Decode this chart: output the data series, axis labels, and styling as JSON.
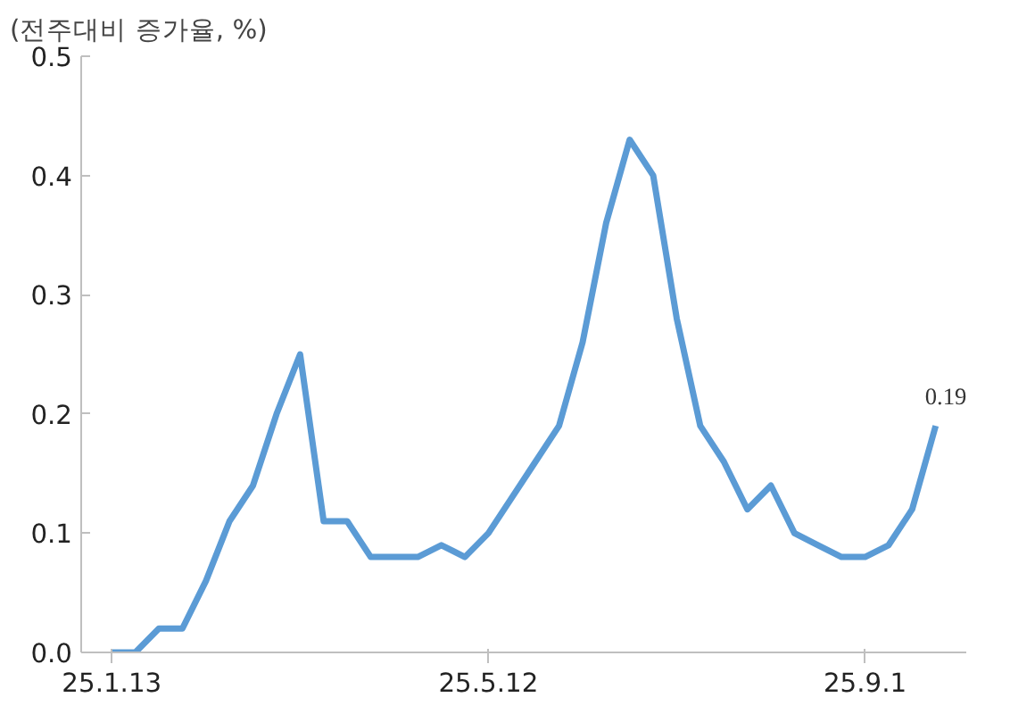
{
  "chart_data": {
    "type": "line",
    "ylabel": "(전주대비 증가율, %)",
    "categories": [
      "25.1.13",
      null,
      null,
      null,
      null,
      null,
      null,
      null,
      null,
      null,
      null,
      null,
      null,
      null,
      null,
      null,
      "25.5.12",
      null,
      null,
      null,
      null,
      null,
      null,
      null,
      null,
      null,
      null,
      null,
      null,
      null,
      null,
      null,
      "25.9.1",
      null,
      null,
      null
    ],
    "series": [
      {
        "color": "#5b9bd5",
        "values": [
          0.0,
          0.0,
          0.02,
          0.02,
          0.06,
          0.11,
          0.14,
          0.2,
          0.25,
          0.11,
          0.11,
          0.08,
          0.08,
          0.08,
          0.09,
          0.08,
          0.1,
          0.13,
          0.16,
          0.19,
          0.26,
          0.36,
          0.43,
          0.4,
          0.28,
          0.19,
          0.16,
          0.12,
          0.14,
          0.1,
          0.09,
          0.08,
          0.08,
          0.09,
          0.12,
          0.19
        ],
        "value_labels": [
          null,
          null,
          null,
          null,
          null,
          null,
          null,
          null,
          null,
          null,
          null,
          null,
          null,
          null,
          null,
          null,
          null,
          null,
          null,
          null,
          null,
          null,
          null,
          null,
          null,
          null,
          null,
          null,
          null,
          null,
          null,
          null,
          null,
          null,
          null,
          "0.19"
        ]
      }
    ],
    "ylim": [
      0,
      0.5
    ],
    "yticks": [
      {
        "value": 0,
        "label": "0.0"
      },
      {
        "value": 0.1,
        "label": "0.1"
      },
      {
        "value": 0.2,
        "label": "0.2"
      },
      {
        "value": 0.3,
        "label": "0.3"
      },
      {
        "value": 0.4,
        "label": "0.4"
      },
      {
        "value": 0.5,
        "label": "0.5"
      }
    ],
    "grid": false,
    "marker": "none",
    "line_style": "solid"
  }
}
